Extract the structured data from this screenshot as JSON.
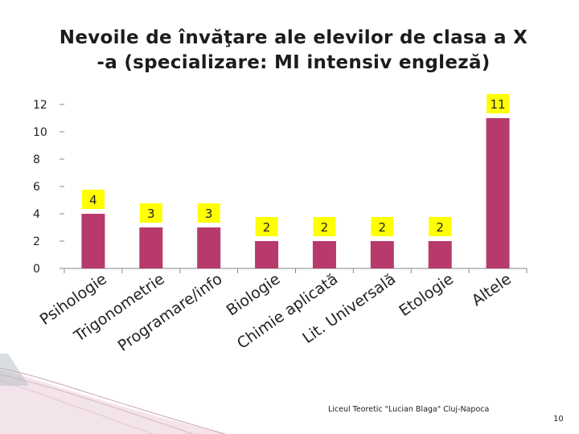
{
  "title_line1": "Nevoile de învăţare ale elevilor de clasa a X",
  "title_line2": "-a (specializare: MI intensiv engleză)",
  "footer": "Liceul Teoretic \"Lucian Blaga\" Cluj-Napoca",
  "page_number": "10",
  "colors": {
    "bar": "#b83a6c",
    "label_bg": "#ffff00",
    "axis": "#888888",
    "text": "#222222"
  },
  "chart_data": {
    "type": "bar",
    "categories": [
      "Psihologie",
      "Trigonometrie",
      "Programare/info",
      "Biologie",
      "Chimie aplicată",
      "Lit. Universală",
      "Etologie",
      "Altele"
    ],
    "values": [
      4,
      3,
      3,
      2,
      2,
      2,
      2,
      11
    ],
    "ylim": [
      0,
      12
    ],
    "yticks": [
      "0",
      "2",
      "4",
      "6",
      "8",
      "10",
      "12"
    ],
    "grid": false,
    "legend": "none"
  }
}
